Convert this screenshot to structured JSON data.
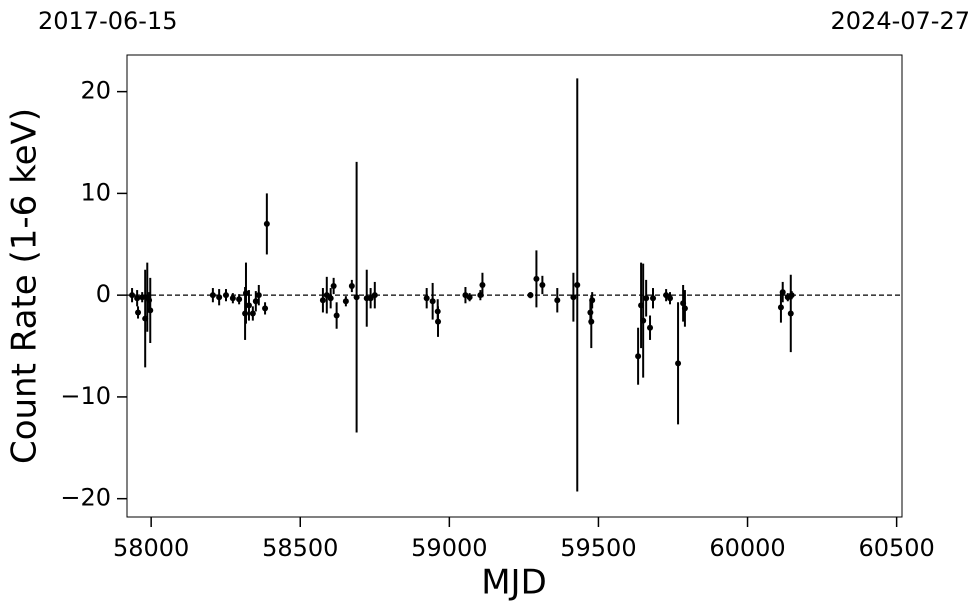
{
  "chart_data": {
    "type": "errorbar-scatter",
    "top_left_label": "2017-06-15",
    "top_right_label": "2024-07-27",
    "xlabel": "MJD",
    "ylabel": "Count Rate (1-6 keV)",
    "xlim": [
      57919,
      60518
    ],
    "ylim": [
      -21.8,
      23.6
    ],
    "xticks": [
      58000,
      58500,
      59000,
      59500,
      60000,
      60500
    ],
    "yticks": [
      {
        "value": -20,
        "label": "−20"
      },
      {
        "value": -10,
        "label": "−10"
      },
      0,
      10,
      20
    ],
    "hline": 0,
    "color": "#000000",
    "x": [
      57936,
      57953,
      57956,
      57970,
      57980,
      57987,
      57993,
      57997,
      58207,
      58228,
      58251,
      58274,
      58295,
      58315,
      58318,
      58328,
      58341,
      58351,
      58361,
      58382,
      58388,
      58576,
      58589,
      58602,
      58612,
      58622,
      58653,
      58673,
      58689,
      58723,
      58736,
      58750,
      58924,
      58944,
      58961,
      58962,
      59054,
      59068,
      59104,
      59111,
      59272,
      59292,
      59312,
      59362,
      59416,
      59429,
      59473,
      59476,
      59479,
      59633,
      59643,
      59650,
      59660,
      59673,
      59683,
      59727,
      59740,
      59767,
      59784,
      59790,
      60112,
      60118,
      60135,
      60145,
      60148
    ],
    "values": [
      0,
      -0.3,
      -1.7,
      -0.2,
      -2.3,
      -0.2,
      -0.5,
      -1.5,
      0,
      -0.2,
      0,
      -0.3,
      -0.4,
      -1.8,
      0.2,
      -1.0,
      -1.8,
      -0.6,
      0,
      -1.3,
      7.0,
      -0.5,
      0,
      -0.3,
      0.9,
      -2.0,
      -0.6,
      0.9,
      -0.2,
      -0.3,
      -0.3,
      0,
      -0.3,
      -0.6,
      -1.6,
      -2.6,
      0,
      -0.2,
      0,
      1.0,
      0,
      1.6,
      1.0,
      -0.5,
      -0.2,
      1.0,
      -1.7,
      -2.6,
      -0.5,
      -6.0,
      -1.0,
      -2.5,
      -0.3,
      -3.2,
      -0.3,
      0,
      -0.3,
      -6.7,
      -0.8,
      -1.3,
      -1.2,
      0.3,
      -0.2,
      -1.8,
      0
    ],
    "errors": [
      0.7,
      0.8,
      0.6,
      0.5,
      4.8,
      3.4,
      0.8,
      3.2,
      0.7,
      0.8,
      0.6,
      0.5,
      0.5,
      2.6,
      3.0,
      1.5,
      0.7,
      1.0,
      1.0,
      0.6,
      3.0,
      1.2,
      1.8,
      1.0,
      0.8,
      1.3,
      0.5,
      0.6,
      13.3,
      2.8,
      1.0,
      1.3,
      1.0,
      1.8,
      1.2,
      1.5,
      0.8,
      0.4,
      0.5,
      1.2,
      0.3,
      2.8,
      0.9,
      1.2,
      2.4,
      20.3,
      1.2,
      2.6,
      0.8,
      2.8,
      4.2,
      5.6,
      1.8,
      1.2,
      1.0,
      0.6,
      0.6,
      6.0,
      1.8,
      1.8,
      1.5,
      1.0,
      0.4,
      3.8,
      0.4
    ]
  }
}
